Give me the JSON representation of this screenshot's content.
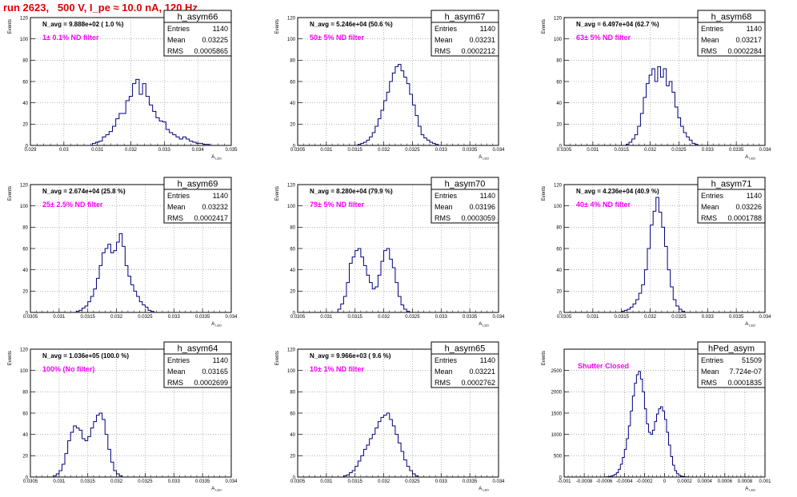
{
  "page_title": "run 2623,   500 V, I_pe ≈ 10.0 nA, 120 Hz",
  "stats_labels": {
    "entries": "Entries",
    "mean": "Mean",
    "rms": "RMS"
  },
  "colors": {
    "histogram_line": "#000080",
    "annotation": "#ff00ff",
    "title": "#e00000"
  },
  "chart_data": [
    {
      "type": "histogram",
      "name": "h_asym66",
      "xlabel": "A",
      "xlabel_sub": "LED",
      "ylabel": "Events",
      "xlim": [
        0.029,
        0.035
      ],
      "ylim": [
        0,
        120
      ],
      "xticks": [
        "0.029",
        "0.03",
        "0.031",
        "0.032",
        "0.033",
        "0.034",
        "0.035"
      ],
      "xtick_values": [
        0.029,
        0.03,
        0.031,
        0.032,
        0.033,
        0.034,
        0.035
      ],
      "yticks": [
        0,
        20,
        40,
        60,
        80,
        100,
        120
      ],
      "grid": true,
      "n_avg_text": "N_avg = 9.888e+02 ( 1.0 %)",
      "filter_text": "1± 0.1% ND filter",
      "stats": {
        "entries": "1140",
        "mean": "0.03225",
        "rms": "0.0005865"
      },
      "bin_start": 0.03085,
      "bin_width": 0.0001,
      "counts": [
        2,
        3,
        4,
        8,
        10,
        13,
        18,
        25,
        30,
        30,
        42,
        46,
        58,
        62,
        48,
        58,
        46,
        38,
        32,
        26,
        23,
        22,
        15,
        12,
        10,
        8,
        6,
        8,
        6,
        4,
        3,
        2,
        2,
        1,
        1
      ]
    },
    {
      "type": "histogram",
      "name": "h_asym67",
      "xlabel": "A",
      "xlabel_sub": "LED",
      "ylabel": "Events",
      "xlim": [
        0.0305,
        0.034
      ],
      "ylim": [
        0,
        120
      ],
      "xticks": [
        "0.0305",
        "0.031",
        "0.0315",
        "0.032",
        "0.0325",
        "0.033",
        "0.0335",
        "0.034"
      ],
      "xtick_values": [
        0.0305,
        0.031,
        0.0315,
        0.032,
        0.0325,
        0.033,
        0.0335,
        0.034
      ],
      "yticks": [
        0,
        20,
        40,
        60,
        80,
        100,
        120
      ],
      "grid": true,
      "n_avg_text": "N_avg = 5.246e+04 (50.6 %)",
      "filter_text": "50± 5% ND filter",
      "stats": {
        "entries": "1140",
        "mean": "0.03231",
        "rms": "0.0002212"
      },
      "bin_start": 0.03155,
      "bin_width": 5e-05,
      "counts": [
        1,
        2,
        3,
        5,
        8,
        12,
        18,
        25,
        33,
        42,
        50,
        60,
        68,
        74,
        76,
        70,
        64,
        58,
        48,
        38,
        28,
        18,
        10,
        7,
        5,
        3,
        2,
        1
      ]
    },
    {
      "type": "histogram",
      "name": "h_asym68",
      "xlabel": "A",
      "xlabel_sub": "LED",
      "ylabel": "Events",
      "xlim": [
        0.0305,
        0.034
      ],
      "ylim": [
        0,
        120
      ],
      "xticks": [
        "0.0305",
        "0.031",
        "0.0315",
        "0.032",
        "0.0325",
        "0.033",
        "0.0335",
        "0.034"
      ],
      "xtick_values": [
        0.0305,
        0.031,
        0.0315,
        0.032,
        0.0325,
        0.033,
        0.0335,
        0.034
      ],
      "yticks": [
        0,
        20,
        40,
        60,
        80,
        100,
        120
      ],
      "grid": true,
      "n_avg_text": "N_avg = 6.497e+04 (62.7 %)",
      "filter_text": "63± 5% ND filter",
      "stats": {
        "entries": "1140",
        "mean": "0.03217",
        "rms": "0.0002284"
      },
      "bin_start": 0.03158,
      "bin_width": 5e-05,
      "counts": [
        1,
        3,
        6,
        10,
        18,
        30,
        45,
        58,
        66,
        72,
        60,
        74,
        64,
        72,
        56,
        60,
        50,
        36,
        26,
        18,
        12,
        8,
        5,
        2,
        1
      ]
    },
    {
      "type": "histogram",
      "name": "h_asym69",
      "xlabel": "A",
      "xlabel_sub": "LED",
      "ylabel": "Events",
      "xlim": [
        0.0305,
        0.034
      ],
      "ylim": [
        0,
        120
      ],
      "xticks": [
        "0.0305",
        "0.031",
        "0.0315",
        "0.032",
        "0.0325",
        "0.033",
        "0.0335",
        "0.034"
      ],
      "xtick_values": [
        0.0305,
        0.031,
        0.0315,
        0.032,
        0.0325,
        0.033,
        0.0335,
        0.034
      ],
      "yticks": [
        0,
        20,
        40,
        60,
        80,
        100,
        120
      ],
      "grid": true,
      "n_avg_text": "N_avg = 2.674e+04 (25.8 %)",
      "filter_text": "25± 2.5% ND filter",
      "stats": {
        "entries": "1140",
        "mean": "0.03232",
        "rms": "0.0002417"
      },
      "bin_start": 0.0313,
      "bin_width": 5e-05,
      "counts": [
        1,
        2,
        4,
        6,
        10,
        15,
        22,
        32,
        44,
        56,
        60,
        64,
        56,
        58,
        66,
        74,
        62,
        44,
        34,
        26,
        20,
        15,
        10,
        7,
        5,
        2,
        1
      ]
    },
    {
      "type": "histogram",
      "name": "h_asym70",
      "xlabel": "A",
      "xlabel_sub": "LED",
      "ylabel": "Events",
      "xlim": [
        0.0305,
        0.034
      ],
      "ylim": [
        0,
        120
      ],
      "xticks": [
        "0.0305",
        "0.031",
        "0.0315",
        "0.032",
        "0.0325",
        "0.033",
        "0.0335",
        "0.034"
      ],
      "xtick_values": [
        0.0305,
        0.031,
        0.0315,
        0.032,
        0.0325,
        0.033,
        0.0335,
        0.034
      ],
      "yticks": [
        0,
        20,
        40,
        60,
        80,
        100,
        120
      ],
      "grid": true,
      "n_avg_text": "N_avg = 8.280e+04 (79.9 %)",
      "filter_text": "79± 5% ND filter",
      "stats": {
        "entries": "1140",
        "mean": "0.03196",
        "rms": "0.0003059"
      },
      "bin_start": 0.0312,
      "bin_width": 5e-05,
      "counts": [
        3,
        8,
        15,
        28,
        46,
        52,
        58,
        60,
        52,
        44,
        35,
        28,
        22,
        24,
        35,
        48,
        58,
        60,
        50,
        42,
        28,
        15,
        7,
        3,
        1
      ]
    },
    {
      "type": "histogram",
      "name": "h_asym71",
      "xlabel": "A",
      "xlabel_sub": "LED",
      "ylabel": "Events",
      "xlim": [
        0.0305,
        0.034
      ],
      "ylim": [
        0,
        120
      ],
      "xticks": [
        "0.0305",
        "0.031",
        "0.0315",
        "0.032",
        "0.0325",
        "0.033",
        "0.0335",
        "0.034"
      ],
      "xtick_values": [
        0.0305,
        0.031,
        0.0315,
        0.032,
        0.0325,
        0.033,
        0.0335,
        0.034
      ],
      "yticks": [
        0,
        20,
        40,
        60,
        80,
        100,
        120
      ],
      "grid": true,
      "n_avg_text": "N_avg = 4.236e+04 (40.9 %)",
      "filter_text": "40± 4% ND filter",
      "stats": {
        "entries": "1140",
        "mean": "0.03226",
        "rms": "0.0001788"
      },
      "bin_start": 0.0315,
      "bin_width": 5e-05,
      "counts": [
        1,
        2,
        3,
        5,
        8,
        12,
        18,
        26,
        40,
        60,
        82,
        95,
        108,
        94,
        80,
        62,
        40,
        24,
        12,
        6,
        3,
        1
      ]
    },
    {
      "type": "histogram",
      "name": "h_asym64",
      "xlabel": "A",
      "xlabel_sub": "LED",
      "ylabel": "Events",
      "xlim": [
        0.0305,
        0.034
      ],
      "ylim": [
        0,
        120
      ],
      "xticks": [
        "0.0305",
        "0.031",
        "0.0315",
        "0.032",
        "0.0325",
        "0.033",
        "0.0335",
        "0.034"
      ],
      "xtick_values": [
        0.0305,
        0.031,
        0.0315,
        0.032,
        0.0325,
        0.033,
        0.0335,
        0.034
      ],
      "yticks": [
        0,
        20,
        40,
        60,
        80,
        100,
        120
      ],
      "grid": true,
      "n_avg_text": "N_avg = 1.036e+05 (100.0 %)",
      "filter_text": "100% (No filter)",
      "stats": {
        "entries": "1140",
        "mean": "0.03165",
        "rms": "0.0002699"
      },
      "bin_start": 0.0309,
      "bin_width": 5e-05,
      "counts": [
        1,
        3,
        6,
        12,
        22,
        34,
        42,
        48,
        46,
        44,
        36,
        34,
        38,
        46,
        52,
        58,
        60,
        54,
        40,
        26,
        14,
        6,
        3,
        1
      ]
    },
    {
      "type": "histogram",
      "name": "h_asym65",
      "xlabel": "A",
      "xlabel_sub": "LED",
      "ylabel": "Events",
      "xlim": [
        0.0305,
        0.034
      ],
      "ylim": [
        0,
        120
      ],
      "xticks": [
        "0.0305",
        "0.031",
        "0.0315",
        "0.032",
        "0.0325",
        "0.033",
        "0.0335",
        "0.034"
      ],
      "xtick_values": [
        0.0305,
        0.031,
        0.0315,
        0.032,
        0.0325,
        0.033,
        0.0335,
        0.034
      ],
      "yticks": [
        0,
        20,
        40,
        60,
        80,
        100,
        120
      ],
      "grid": true,
      "n_avg_text": "N_avg = 9.966e+03 ( 9.6 %)",
      "filter_text": "10± 1% ND filter",
      "stats": {
        "entries": "1140",
        "mean": "0.03221",
        "rms": "0.0002762"
      },
      "bin_start": 0.0313,
      "bin_width": 5e-05,
      "counts": [
        1,
        2,
        4,
        6,
        10,
        15,
        20,
        26,
        30,
        36,
        40,
        46,
        52,
        56,
        58,
        60,
        54,
        48,
        40,
        32,
        24,
        16,
        10,
        6,
        3,
        1
      ]
    },
    {
      "type": "histogram",
      "name": "hPed_asym",
      "xlabel": "A",
      "xlabel_sub": "LED",
      "ylabel": "Events",
      "xlim": [
        -0.001,
        0.001
      ],
      "ylim": [
        0,
        3000
      ],
      "xticks": [
        "-0.001",
        "-0.0008",
        "-0.0006",
        "-0.0004",
        "-0.0002",
        "0",
        "0.0002",
        "0.0004",
        "0.0006",
        "0.0008",
        "0.001"
      ],
      "xtick_values": [
        -0.001,
        -0.0008,
        -0.0006,
        -0.0004,
        -0.0002,
        0,
        0.0002,
        0.0004,
        0.0006,
        0.0008,
        0.001
      ],
      "yticks": [
        0,
        500,
        1000,
        1500,
        2000,
        2500
      ],
      "grid": true,
      "n_avg_text": "",
      "filter_text": "Shutter Closed",
      "stats": {
        "entries": "51509",
        "mean": "7.724e-07",
        "rms": "0.0001835"
      },
      "bin_start": -0.0006,
      "bin_width": 2e-05,
      "counts": [
        2,
        5,
        10,
        20,
        35,
        60,
        100,
        180,
        300,
        460,
        650,
        900,
        1200,
        1550,
        1900,
        2200,
        2400,
        2480,
        2300,
        2000,
        1600,
        1250,
        1050,
        1000,
        1100,
        1300,
        1480,
        1600,
        1650,
        1550,
        1350,
        1050,
        750,
        480,
        280,
        150,
        80,
        40,
        20,
        10,
        5,
        2
      ]
    }
  ]
}
